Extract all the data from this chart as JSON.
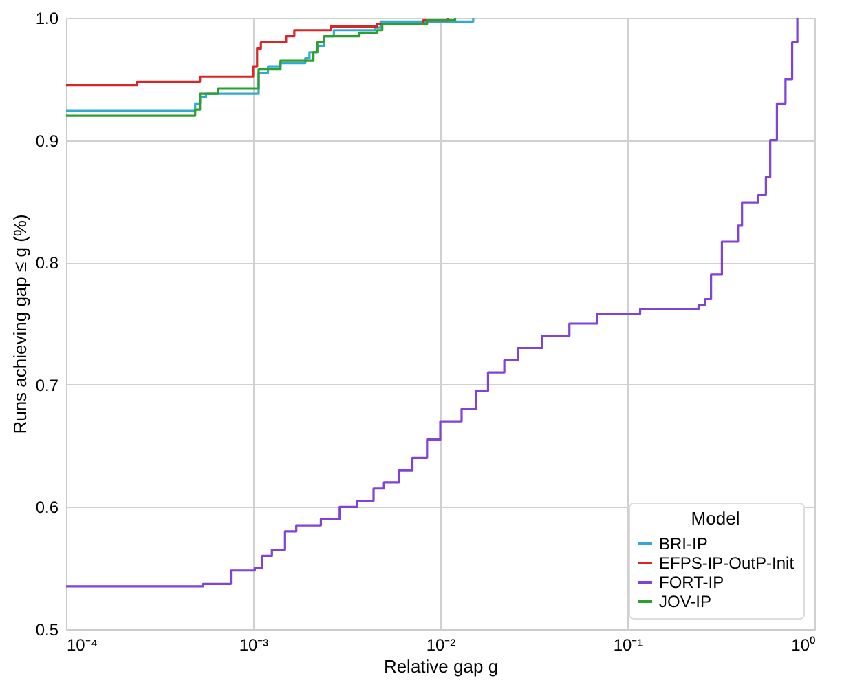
{
  "chart_data": {
    "type": "step",
    "xlabel": "Relative gap g",
    "ylabel": "Runs achieving gap ≤ g (%)",
    "legend_title": "Model",
    "legend": "bottom right",
    "grid": true,
    "log": "x",
    "line_style": "solid",
    "xlim": [
      0.0001,
      1
    ],
    "xticks": [
      {
        "value": 0.0001,
        "label": "10⁻⁴"
      },
      {
        "value": 0.001,
        "label": "10⁻³"
      },
      {
        "value": 0.01,
        "label": "10⁻²"
      },
      {
        "value": 0.1,
        "label": "10⁻¹"
      },
      {
        "value": 1,
        "label": "10⁰"
      }
    ],
    "ylim": [
      0.5,
      1.0
    ],
    "yticks": [
      0.5,
      0.6,
      0.7,
      0.8,
      0.9,
      {
        "value": 1,
        "label": "1.0"
      }
    ],
    "series": [
      {
        "name": "BRI-IP",
        "color": "#33a9cf",
        "x": [
          0.0001,
          0.00049,
          0.00052,
          0.00056,
          0.00107,
          0.0012,
          0.0014,
          0.0019,
          0.002,
          0.0022,
          0.0024,
          0.0027,
          0.0045,
          0.0048,
          0.015
        ],
        "values": [
          0.924,
          0.93,
          0.935,
          0.938,
          0.955,
          0.96,
          0.963,
          0.967,
          0.972,
          0.977,
          0.985,
          0.99,
          0.992,
          0.997,
          1.0
        ]
      },
      {
        "name": "EFPS-IP-OutP-Init",
        "color": "#d62728",
        "x": [
          0.0001,
          0.00024,
          0.00052,
          0.001,
          0.00105,
          0.0011,
          0.0015,
          0.00166,
          0.0026,
          0.0046,
          0.0081,
          0.011
        ],
        "values": [
          0.945,
          0.948,
          0.952,
          0.96,
          0.975,
          0.98,
          0.985,
          0.99,
          0.993,
          0.995,
          0.998,
          1.0
        ]
      },
      {
        "name": "FORT-IP",
        "color": "#8142d6",
        "x": [
          0.0001,
          0.00054,
          0.00076,
          0.00102,
          0.00112,
          0.00126,
          0.00148,
          0.0017,
          0.0023,
          0.0029,
          0.0036,
          0.0044,
          0.005,
          0.006,
          0.0071,
          0.0085,
          0.01,
          0.013,
          0.0155,
          0.018,
          0.022,
          0.026,
          0.035,
          0.049,
          0.069,
          0.117,
          0.24,
          0.26,
          0.28,
          0.32,
          0.39,
          0.41,
          0.5,
          0.55,
          0.58,
          0.63,
          0.7,
          0.76,
          0.81
        ],
        "values": [
          0.535,
          0.537,
          0.548,
          0.55,
          0.56,
          0.565,
          0.58,
          0.585,
          0.59,
          0.6,
          0.605,
          0.615,
          0.62,
          0.63,
          0.64,
          0.655,
          0.67,
          0.68,
          0.695,
          0.71,
          0.72,
          0.73,
          0.74,
          0.75,
          0.758,
          0.762,
          0.765,
          0.77,
          0.79,
          0.817,
          0.83,
          0.849,
          0.855,
          0.87,
          0.9,
          0.93,
          0.95,
          0.98,
          1.0
        ]
      },
      {
        "name": "JOV-IP",
        "color": "#2ca02c",
        "x": [
          0.0001,
          0.00049,
          0.00052,
          0.00065,
          0.00107,
          0.0014,
          0.0021,
          0.0022,
          0.0024,
          0.0037,
          0.0046,
          0.0049,
          0.0085,
          0.012
        ],
        "values": [
          0.92,
          0.925,
          0.938,
          0.942,
          0.958,
          0.965,
          0.972,
          0.98,
          0.985,
          0.988,
          0.99,
          0.995,
          0.998,
          1.0
        ]
      }
    ]
  }
}
